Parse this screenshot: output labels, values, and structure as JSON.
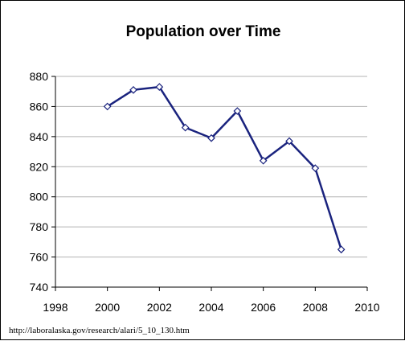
{
  "chart_data": {
    "type": "line",
    "title": "Population over Time",
    "xlabel": "",
    "ylabel": "",
    "xlim": [
      1998,
      2010
    ],
    "ylim": [
      740,
      880
    ],
    "x_ticks": [
      1998,
      2000,
      2002,
      2004,
      2006,
      2008,
      2010
    ],
    "y_ticks": [
      740,
      760,
      780,
      800,
      820,
      840,
      860,
      880
    ],
    "grid": "horizontal",
    "legend": "none",
    "series": [
      {
        "x": [
          2000,
          2001,
          2002,
          2003,
          2004,
          2005,
          2006,
          2007,
          2008,
          2009
        ],
        "values": [
          860,
          871,
          873,
          846,
          839,
          857,
          824,
          837,
          819,
          765
        ],
        "color": "#1a237e",
        "marker": "diamond-open"
      }
    ]
  },
  "source": "http://laboralaska.gov/research/alari/5_10_130.htm"
}
